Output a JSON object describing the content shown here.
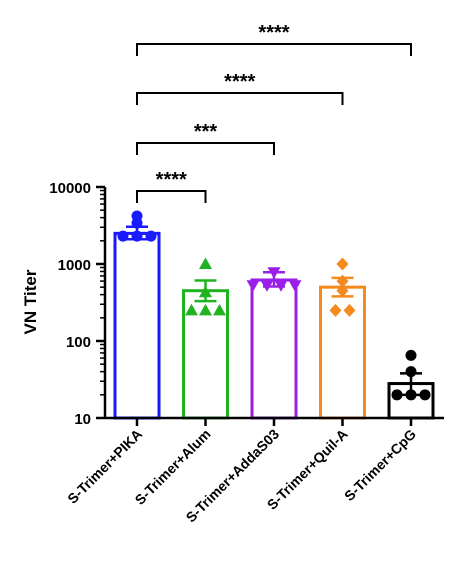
{
  "chart_data": {
    "type": "bar",
    "title": "",
    "xlabel": "",
    "ylabel": "VN Titer",
    "yscale": "log",
    "ylim": [
      10,
      10000
    ],
    "y_ticks": [
      "10",
      "100",
      "1000",
      "10000"
    ],
    "grid": false,
    "legend": "none",
    "error_bars": "mean ± SEM",
    "categories": [
      "S-Trimer+PIKA",
      "S-Trimer+Alum",
      "S-Trimer+AddaS03",
      "S-Trimer+Quil-A",
      "S-Trimer+CpG"
    ],
    "colors": [
      "#1a1aff",
      "#1fb41f",
      "#9b1ee8",
      "#f58a1f",
      "#000000"
    ],
    "markers": [
      "circle",
      "triangle-up",
      "triangle-down",
      "diamond",
      "circle"
    ],
    "series": [
      {
        "values": [
          2500,
          450,
          620,
          500,
          28
        ],
        "error": [
          [
            2100,
            3050
          ],
          [
            330,
            610
          ],
          [
            510,
            780
          ],
          [
            380,
            660
          ],
          [
            20,
            38
          ]
        ],
        "points": [
          [
            4200,
            3400,
            2300,
            2300,
            2300
          ],
          [
            1000,
            430,
            250,
            250,
            250
          ],
          [
            780,
            530,
            530,
            530,
            530
          ],
          [
            1000,
            600,
            450,
            250,
            250
          ],
          [
            65,
            40,
            20,
            20,
            20
          ]
        ]
      }
    ],
    "comparisons": [
      {
        "from": "S-Trimer+PIKA",
        "to": "S-Trimer+Alum",
        "label": "****"
      },
      {
        "from": "S-Trimer+PIKA",
        "to": "S-Trimer+AddaS03",
        "label": "***"
      },
      {
        "from": "S-Trimer+PIKA",
        "to": "S-Trimer+Quil-A",
        "label": "****"
      },
      {
        "from": "S-Trimer+PIKA",
        "to": "S-Trimer+CpG",
        "label": "****"
      }
    ]
  }
}
